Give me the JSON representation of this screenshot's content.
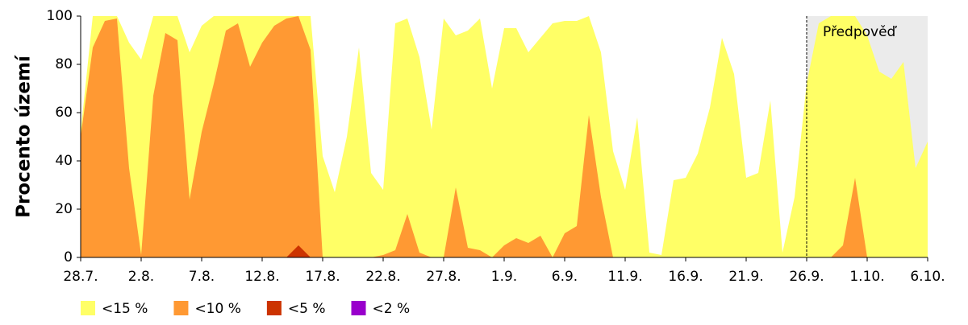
{
  "chart_data": {
    "type": "area",
    "ylabel": "Procento území",
    "categories": [
      "28.7.",
      null,
      null,
      null,
      null,
      "2.8.",
      null,
      null,
      null,
      null,
      "7.8.",
      null,
      null,
      null,
      null,
      "12.8.",
      null,
      null,
      null,
      null,
      "17.8.",
      null,
      null,
      null,
      null,
      "22.8.",
      null,
      null,
      null,
      null,
      "27.8.",
      null,
      null,
      null,
      null,
      "1.9.",
      null,
      null,
      null,
      null,
      "6.9.",
      null,
      null,
      null,
      null,
      "11.9.",
      null,
      null,
      null,
      null,
      "16.9.",
      null,
      null,
      null,
      null,
      "21.9.",
      null,
      null,
      null,
      null,
      "26.9.",
      null,
      null,
      null,
      null,
      "1.10.",
      null,
      null,
      null,
      null,
      "6.10."
    ],
    "series": [
      {
        "name": "<15 %",
        "color": "#ffff66",
        "values": [
          52,
          100,
          100,
          100,
          89,
          82,
          100,
          100,
          100,
          85,
          96,
          100,
          100,
          100,
          100,
          100,
          100,
          100,
          100,
          100,
          42,
          27,
          50,
          87,
          35,
          28,
          97,
          99,
          83,
          53,
          99,
          92,
          94,
          99,
          70,
          95,
          95,
          85,
          91,
          97,
          98,
          98,
          100,
          85,
          44,
          28,
          58,
          2,
          1,
          32,
          33,
          43,
          62,
          91,
          76,
          33,
          35,
          65,
          2,
          25,
          72,
          97,
          100,
          100,
          100,
          92,
          77,
          74,
          81,
          37,
          48
        ]
      },
      {
        "name": "<10 %",
        "color": "#ff9933",
        "values": [
          50,
          87,
          98,
          99,
          37,
          1,
          67,
          93,
          90,
          24,
          52,
          72,
          94,
          97,
          79,
          89,
          96,
          99,
          100,
          86,
          0,
          0,
          0,
          0,
          0,
          1,
          3,
          18,
          2,
          0,
          0,
          29,
          4,
          3,
          0,
          5,
          8,
          6,
          9,
          0,
          10,
          13,
          59,
          25,
          0,
          0,
          0,
          0,
          0,
          0,
          0,
          0,
          0,
          0,
          0,
          0,
          0,
          0,
          0,
          0,
          0,
          0,
          0,
          5,
          33,
          0,
          0,
          0,
          0,
          0,
          0
        ]
      },
      {
        "name": "<5 %",
        "color": "#cc3300",
        "values": [
          0,
          0,
          0,
          0,
          0,
          0,
          0,
          0,
          0,
          0,
          0,
          0,
          0,
          0,
          0,
          0,
          0,
          0,
          5,
          0,
          0,
          0,
          0,
          0,
          0,
          0,
          0,
          0,
          0,
          0,
          0,
          0,
          0,
          0,
          0,
          0,
          0,
          0,
          0,
          0,
          0,
          0,
          0,
          0,
          0,
          0,
          0,
          0,
          0,
          0,
          0,
          0,
          0,
          0,
          0,
          0,
          0,
          0,
          0,
          0,
          0,
          0,
          0,
          0,
          0,
          0,
          0,
          0,
          0,
          0,
          0
        ]
      },
      {
        "name": "<2 %",
        "color": "#9900cc",
        "values": [
          0,
          0,
          0,
          0,
          0,
          0,
          0,
          0,
          0,
          0,
          0,
          0,
          0,
          0,
          0,
          0,
          0,
          0,
          0,
          0,
          0,
          0,
          0,
          0,
          0,
          0,
          0,
          0,
          0,
          0,
          0,
          0,
          0,
          0,
          0,
          0,
          0,
          0,
          0,
          0,
          0,
          0,
          0,
          0,
          0,
          0,
          0,
          0,
          0,
          0,
          0,
          0,
          0,
          0,
          0,
          0,
          0,
          0,
          0,
          0,
          0,
          0,
          0,
          0,
          0,
          0,
          0,
          0,
          0,
          0,
          0
        ]
      }
    ],
    "forecast": {
      "label": "Předpověď",
      "start": "26.9.",
      "color": "#ebebeb"
    },
    "ylim": [
      0,
      100
    ],
    "yticks": [
      0,
      20,
      40,
      60,
      80,
      100
    ]
  }
}
